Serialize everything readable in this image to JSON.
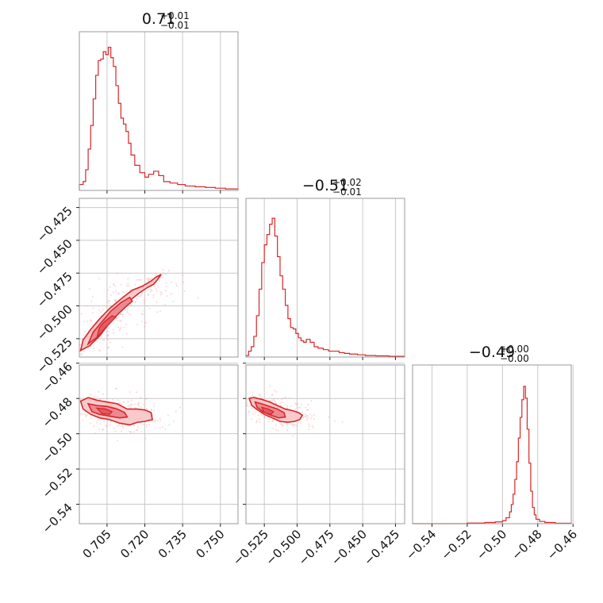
{
  "chart_data": {
    "type": "corner",
    "color": "#d62728",
    "titles": {
      "p0": {
        "value": "0.71",
        "plus": "+0.01",
        "minus": "−0.01"
      },
      "p1": {
        "value": "−0.51",
        "plus": "+0.02",
        "minus": "−0.01"
      },
      "p2": {
        "value": "−0.49",
        "plus": "+0.00",
        "minus": "−0.00"
      }
    },
    "axes": {
      "p0": {
        "range": [
          0.694,
          0.757
        ],
        "ticks": [
          0.705,
          0.72,
          0.735,
          0.75
        ],
        "tick_labels": [
          "0.705",
          "0.720",
          "0.735",
          "0.750"
        ]
      },
      "p1": {
        "range": [
          -0.539,
          -0.418
        ],
        "ticks": [
          -0.525,
          -0.5,
          -0.475,
          -0.45,
          -0.425
        ],
        "tick_labels": [
          "−0.525",
          "−0.500",
          "−0.475",
          "−0.450",
          "−0.425"
        ]
      },
      "p2": {
        "range": [
          -0.551,
          -0.461
        ],
        "ticks": [
          -0.54,
          -0.52,
          -0.5,
          -0.48,
          -0.46
        ],
        "tick_labels": [
          "−0.54",
          "−0.52",
          "−0.50",
          "−0.48",
          "−0.46"
        ]
      }
    },
    "histograms": {
      "p0": {
        "bin_edges": [
          0.694,
          0.706,
          0.72,
          0.757
        ],
        "profile": [
          [
            0.694,
            0.04
          ],
          [
            0.6955,
            0.06
          ],
          [
            0.6965,
            0.14
          ],
          [
            0.6975,
            0.28
          ],
          [
            0.6985,
            0.44
          ],
          [
            0.6995,
            0.62
          ],
          [
            0.7005,
            0.78
          ],
          [
            0.7015,
            0.88
          ],
          [
            0.7025,
            0.89
          ],
          [
            0.7035,
            0.94
          ],
          [
            0.7045,
            0.92
          ],
          [
            0.7055,
            0.97
          ],
          [
            0.7065,
            0.9
          ],
          [
            0.7075,
            0.84
          ],
          [
            0.7085,
            0.71
          ],
          [
            0.7095,
            0.59
          ],
          [
            0.7105,
            0.49
          ],
          [
            0.7115,
            0.45
          ],
          [
            0.7125,
            0.4
          ],
          [
            0.7135,
            0.32
          ],
          [
            0.7145,
            0.24
          ],
          [
            0.716,
            0.17
          ],
          [
            0.718,
            0.12
          ],
          [
            0.72,
            0.09
          ],
          [
            0.7215,
            0.11
          ],
          [
            0.7235,
            0.13
          ],
          [
            0.7255,
            0.1
          ],
          [
            0.7275,
            0.06
          ],
          [
            0.73,
            0.05
          ],
          [
            0.733,
            0.04
          ],
          [
            0.736,
            0.03
          ],
          [
            0.74,
            0.025
          ],
          [
            0.744,
            0.02
          ],
          [
            0.748,
            0.015
          ],
          [
            0.752,
            0.01
          ],
          [
            0.757,
            0.005
          ]
        ]
      },
      "p1": {
        "profile": [
          [
            -0.539,
            0.01
          ],
          [
            -0.537,
            0.04
          ],
          [
            -0.535,
            0.07
          ],
          [
            -0.533,
            0.14
          ],
          [
            -0.531,
            0.28
          ],
          [
            -0.529,
            0.46
          ],
          [
            -0.527,
            0.64
          ],
          [
            -0.525,
            0.76
          ],
          [
            -0.523,
            0.83
          ],
          [
            -0.521,
            0.9
          ],
          [
            -0.519,
            0.94
          ],
          [
            -0.517,
            0.82
          ],
          [
            -0.515,
            0.68
          ],
          [
            -0.513,
            0.55
          ],
          [
            -0.511,
            0.46
          ],
          [
            -0.509,
            0.35
          ],
          [
            -0.507,
            0.26
          ],
          [
            -0.505,
            0.2
          ],
          [
            -0.503,
            0.19
          ],
          [
            -0.501,
            0.16
          ],
          [
            -0.499,
            0.13
          ],
          [
            -0.497,
            0.11
          ],
          [
            -0.495,
            0.1
          ],
          [
            -0.493,
            0.12
          ],
          [
            -0.49,
            0.1
          ],
          [
            -0.487,
            0.07
          ],
          [
            -0.484,
            0.06
          ],
          [
            -0.48,
            0.05
          ],
          [
            -0.476,
            0.04
          ],
          [
            -0.472,
            0.04
          ],
          [
            -0.468,
            0.03
          ],
          [
            -0.464,
            0.025
          ],
          [
            -0.46,
            0.02
          ],
          [
            -0.454,
            0.015
          ],
          [
            -0.448,
            0.01
          ],
          [
            -0.44,
            0.008
          ],
          [
            -0.43,
            0.005
          ],
          [
            -0.418,
            0.003
          ]
        ]
      },
      "p2": {
        "profile": [
          [
            -0.551,
            0.0
          ],
          [
            -0.52,
            0.004
          ],
          [
            -0.51,
            0.008
          ],
          [
            -0.504,
            0.012
          ],
          [
            -0.5,
            0.02
          ],
          [
            -0.498,
            0.04
          ],
          [
            -0.496,
            0.08
          ],
          [
            -0.495,
            0.13
          ],
          [
            -0.494,
            0.2
          ],
          [
            -0.493,
            0.3
          ],
          [
            -0.492,
            0.42
          ],
          [
            -0.491,
            0.58
          ],
          [
            -0.49,
            0.72
          ],
          [
            -0.489,
            0.84
          ],
          [
            -0.488,
            0.93
          ],
          [
            -0.487,
            0.85
          ],
          [
            -0.486,
            0.64
          ],
          [
            -0.485,
            0.41
          ],
          [
            -0.484,
            0.22
          ],
          [
            -0.483,
            0.11
          ],
          [
            -0.482,
            0.06
          ],
          [
            -0.481,
            0.03
          ],
          [
            -0.479,
            0.015
          ],
          [
            -0.476,
            0.008
          ],
          [
            -0.47,
            0.003
          ],
          [
            -0.461,
            0.0
          ]
        ]
      }
    },
    "contours": {
      "p0_p1": {
        "outer": [
          [
            0.6945,
            -0.534
          ],
          [
            0.698,
            -0.5305
          ],
          [
            0.702,
            -0.523
          ],
          [
            0.706,
            -0.513
          ],
          [
            0.71,
            -0.504
          ],
          [
            0.714,
            -0.496
          ],
          [
            0.7175,
            -0.4905
          ],
          [
            0.721,
            -0.486
          ],
          [
            0.7235,
            -0.4835
          ],
          [
            0.725,
            -0.48
          ],
          [
            0.7265,
            -0.476
          ],
          [
            0.7245,
            -0.478
          ],
          [
            0.7225,
            -0.481
          ],
          [
            0.719,
            -0.485
          ],
          [
            0.715,
            -0.488
          ],
          [
            0.711,
            -0.494
          ],
          [
            0.706,
            -0.502
          ],
          [
            0.702,
            -0.51
          ],
          [
            0.6985,
            -0.518
          ],
          [
            0.6955,
            -0.526
          ],
          [
            0.6945,
            -0.534
          ]
        ],
        "inner": [
          [
            0.6975,
            -0.529
          ],
          [
            0.701,
            -0.524
          ],
          [
            0.705,
            -0.515
          ],
          [
            0.709,
            -0.507
          ],
          [
            0.7125,
            -0.5005
          ],
          [
            0.715,
            -0.4965
          ],
          [
            0.714,
            -0.4935
          ],
          [
            0.7105,
            -0.4975
          ],
          [
            0.7065,
            -0.504
          ],
          [
            0.703,
            -0.512
          ],
          [
            0.6995,
            -0.52
          ],
          [
            0.6975,
            -0.529
          ]
        ],
        "core": [
          [
            0.701,
            -0.524
          ],
          [
            0.704,
            -0.5175
          ],
          [
            0.707,
            -0.5115
          ],
          [
            0.7085,
            -0.5085
          ],
          [
            0.707,
            -0.5075
          ],
          [
            0.704,
            -0.512
          ],
          [
            0.702,
            -0.5165
          ],
          [
            0.701,
            -0.524
          ]
        ]
      },
      "p0_p2": {
        "outer": [
          [
            0.6945,
            -0.4815
          ],
          [
            0.6975,
            -0.4795
          ],
          [
            0.701,
            -0.481
          ],
          [
            0.705,
            -0.482
          ],
          [
            0.709,
            -0.483
          ],
          [
            0.713,
            -0.486
          ],
          [
            0.717,
            -0.486
          ],
          [
            0.72,
            -0.4865
          ],
          [
            0.7225,
            -0.488
          ],
          [
            0.723,
            -0.492
          ],
          [
            0.72,
            -0.493
          ],
          [
            0.717,
            -0.4935
          ],
          [
            0.714,
            -0.495
          ],
          [
            0.71,
            -0.494
          ],
          [
            0.706,
            -0.492
          ],
          [
            0.702,
            -0.491
          ],
          [
            0.6985,
            -0.489
          ],
          [
            0.6955,
            -0.486
          ],
          [
            0.6945,
            -0.4815
          ]
        ],
        "inner": [
          [
            0.6975,
            -0.483
          ],
          [
            0.701,
            -0.484
          ],
          [
            0.705,
            -0.4845
          ],
          [
            0.709,
            -0.486
          ],
          [
            0.712,
            -0.488
          ],
          [
            0.713,
            -0.4905
          ],
          [
            0.71,
            -0.491
          ],
          [
            0.706,
            -0.49
          ],
          [
            0.702,
            -0.489
          ],
          [
            0.699,
            -0.4875
          ],
          [
            0.6975,
            -0.483
          ]
        ],
        "core": [
          [
            0.701,
            -0.4855
          ],
          [
            0.7045,
            -0.486
          ],
          [
            0.707,
            -0.4875
          ],
          [
            0.706,
            -0.489
          ],
          [
            0.703,
            -0.4885
          ],
          [
            0.701,
            -0.4855
          ]
        ]
      },
      "p1_p2": {
        "outer": [
          [
            -0.5365,
            -0.48
          ],
          [
            -0.533,
            -0.4795
          ],
          [
            -0.527,
            -0.4805
          ],
          [
            -0.521,
            -0.482
          ],
          [
            -0.515,
            -0.484
          ],
          [
            -0.509,
            -0.486
          ],
          [
            -0.503,
            -0.487
          ],
          [
            -0.499,
            -0.488
          ],
          [
            -0.496,
            -0.4895
          ],
          [
            -0.498,
            -0.492
          ],
          [
            -0.502,
            -0.493
          ],
          [
            -0.507,
            -0.4935
          ],
          [
            -0.513,
            -0.493
          ],
          [
            -0.519,
            -0.491
          ],
          [
            -0.525,
            -0.489
          ],
          [
            -0.53,
            -0.4865
          ],
          [
            -0.5345,
            -0.484
          ],
          [
            -0.5365,
            -0.48
          ]
        ],
        "inner": [
          [
            -0.532,
            -0.482
          ],
          [
            -0.527,
            -0.483
          ],
          [
            -0.521,
            -0.4845
          ],
          [
            -0.515,
            -0.486
          ],
          [
            -0.51,
            -0.488
          ],
          [
            -0.509,
            -0.4905
          ],
          [
            -0.514,
            -0.491
          ],
          [
            -0.52,
            -0.4895
          ],
          [
            -0.526,
            -0.4875
          ],
          [
            -0.5305,
            -0.485
          ],
          [
            -0.532,
            -0.482
          ]
        ],
        "core": [
          [
            -0.527,
            -0.485
          ],
          [
            -0.522,
            -0.486
          ],
          [
            -0.518,
            -0.4875
          ],
          [
            -0.52,
            -0.489
          ],
          [
            -0.525,
            -0.488
          ],
          [
            -0.527,
            -0.485
          ]
        ]
      }
    }
  }
}
